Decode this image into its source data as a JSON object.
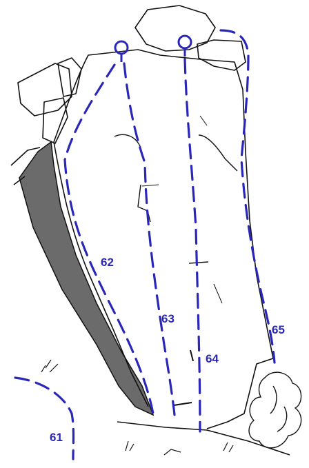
{
  "colors": {
    "route": "#2a27b8",
    "ink": "#111111",
    "background": "#ffffff"
  },
  "routes": [
    {
      "number": "61"
    },
    {
      "number": "62"
    },
    {
      "number": "63"
    },
    {
      "number": "64"
    },
    {
      "number": "65"
    }
  ],
  "lower_off_icons": [
    "lower-off-ring-icon",
    "lower-off-ring-icon"
  ]
}
